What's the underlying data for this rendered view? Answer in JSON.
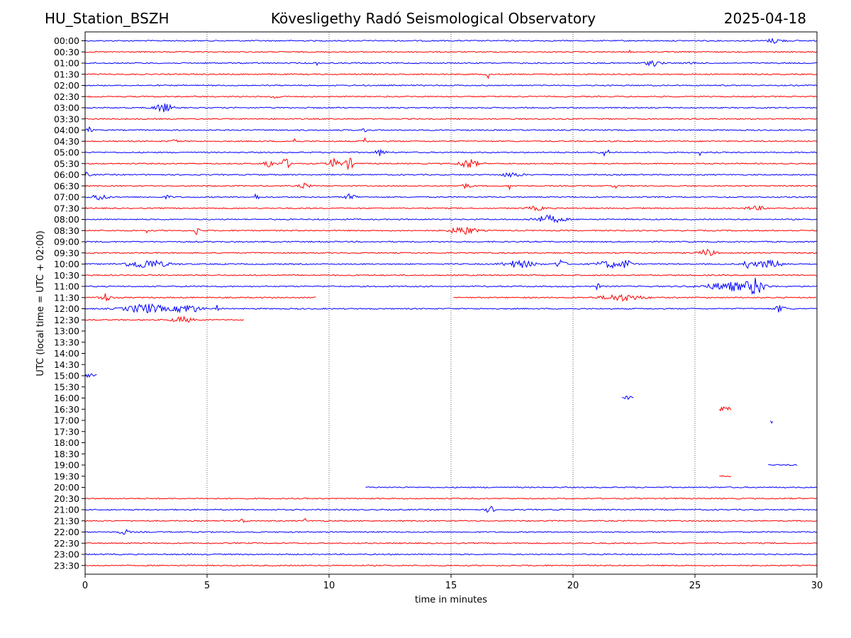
{
  "header": {
    "station": "HU_Station_BSZH",
    "observatory": "Kövesligethy Radó Seismological Observatory",
    "date": "2025-04-18"
  },
  "chart_data": {
    "type": "line",
    "title": "Kövesligethy Radó Seismological Observatory",
    "xlabel": "time in minutes",
    "ylabel": "UTC (local time = UTC + 02:00)",
    "xlim": [
      0,
      30
    ],
    "xticks": [
      0,
      5,
      10,
      15,
      20,
      25,
      30
    ],
    "x_grid": "vertical dotted lines at 5, 10, 15, 20, 25",
    "trace_colors": [
      "#0000ff",
      "#ff0000"
    ],
    "rows": [
      {
        "label": "00:00",
        "color": "#0000ff",
        "segments": [
          [
            0,
            30
          ]
        ],
        "bursts": [
          [
            28.3,
            0.3,
            0.7
          ]
        ]
      },
      {
        "label": "00:30",
        "color": "#ff0000",
        "segments": [
          [
            0,
            30
          ]
        ],
        "bursts": [
          [
            22.3,
            0.05,
            0.5
          ]
        ]
      },
      {
        "label": "01:00",
        "color": "#0000ff",
        "segments": [
          [
            0,
            30
          ]
        ],
        "bursts": [
          [
            9.5,
            0.05,
            0.6
          ],
          [
            23.3,
            0.3,
            0.8
          ],
          [
            24.9,
            0.1,
            0.8
          ]
        ]
      },
      {
        "label": "01:30",
        "color": "#ff0000",
        "segments": [
          [
            0,
            30
          ]
        ],
        "bursts": [
          [
            16.5,
            0.05,
            1.3
          ]
        ]
      },
      {
        "label": "02:00",
        "color": "#0000ff",
        "segments": [
          [
            0,
            30
          ]
        ],
        "bursts": []
      },
      {
        "label": "02:30",
        "color": "#ff0000",
        "segments": [
          [
            0,
            30
          ]
        ],
        "bursts": [
          [
            7.8,
            0.15,
            0.8
          ]
        ]
      },
      {
        "label": "03:00",
        "color": "#0000ff",
        "segments": [
          [
            0,
            30
          ]
        ],
        "bursts": [
          [
            3.2,
            0.35,
            1.2
          ]
        ]
      },
      {
        "label": "03:30",
        "color": "#ff0000",
        "segments": [
          [
            0,
            30
          ]
        ],
        "bursts": []
      },
      {
        "label": "04:00",
        "color": "#0000ff",
        "segments": [
          [
            0,
            30
          ]
        ],
        "bursts": [
          [
            0.2,
            0.1,
            0.8
          ],
          [
            11.5,
            0.1,
            1.0
          ]
        ]
      },
      {
        "label": "04:30",
        "color": "#ff0000",
        "segments": [
          [
            0,
            30
          ]
        ],
        "bursts": [
          [
            3.7,
            0.1,
            0.8
          ],
          [
            8.6,
            0.05,
            2.3
          ],
          [
            11.5,
            0.1,
            0.9
          ]
        ]
      },
      {
        "label": "05:00",
        "color": "#0000ff",
        "segments": [
          [
            0,
            30
          ]
        ],
        "bursts": [
          [
            12.1,
            0.2,
            0.9
          ],
          [
            21.3,
            0.2,
            0.9
          ],
          [
            25.2,
            0.05,
            0.7
          ]
        ]
      },
      {
        "label": "05:30",
        "color": "#ff0000",
        "segments": [
          [
            0,
            30
          ]
        ],
        "bursts": [
          [
            7.5,
            0.15,
            1.6
          ],
          [
            8.2,
            0.2,
            1.4
          ],
          [
            10.2,
            0.2,
            1.5
          ],
          [
            10.8,
            0.2,
            1.6
          ],
          [
            15.7,
            0.35,
            1.3
          ]
        ]
      },
      {
        "label": "06:00",
        "color": "#0000ff",
        "segments": [
          [
            0,
            30
          ]
        ],
        "bursts": [
          [
            0.1,
            0.1,
            0.8
          ],
          [
            17.5,
            0.4,
            0.6
          ]
        ]
      },
      {
        "label": "06:30",
        "color": "#ff0000",
        "segments": [
          [
            0,
            30
          ]
        ],
        "bursts": [
          [
            9.0,
            0.2,
            0.7
          ],
          [
            15.6,
            0.2,
            0.6
          ],
          [
            17.4,
            0.05,
            1.0
          ],
          [
            21.7,
            0.05,
            2.0
          ]
        ]
      },
      {
        "label": "07:00",
        "color": "#0000ff",
        "segments": [
          [
            0,
            30
          ]
        ],
        "bursts": [
          [
            0.6,
            0.3,
            0.9
          ],
          [
            3.4,
            0.1,
            0.7
          ],
          [
            7.0,
            0.1,
            1.0
          ],
          [
            10.9,
            0.2,
            1.0
          ]
        ]
      },
      {
        "label": "07:30",
        "color": "#ff0000",
        "segments": [
          [
            0,
            30
          ]
        ],
        "bursts": [
          [
            18.5,
            0.4,
            0.5
          ],
          [
            27.5,
            0.4,
            0.5
          ]
        ]
      },
      {
        "label": "08:00",
        "color": "#0000ff",
        "segments": [
          [
            0,
            30
          ]
        ],
        "bursts": [
          [
            19.0,
            0.6,
            1.0
          ]
        ]
      },
      {
        "label": "08:30",
        "color": "#ff0000",
        "segments": [
          [
            0,
            30
          ]
        ],
        "bursts": [
          [
            2.5,
            0.05,
            0.8
          ],
          [
            4.6,
            0.1,
            1.4
          ],
          [
            15.5,
            0.5,
            1.1
          ],
          [
            22.0,
            0.1,
            0.8
          ]
        ]
      },
      {
        "label": "09:00",
        "color": "#0000ff",
        "segments": [
          [
            0,
            30
          ]
        ],
        "bursts": []
      },
      {
        "label": "09:30",
        "color": "#ff0000",
        "segments": [
          [
            0,
            30
          ]
        ],
        "bursts": [
          [
            25.5,
            0.3,
            1.0
          ]
        ]
      },
      {
        "label": "10:00",
        "color": "#0000ff",
        "segments": [
          [
            0,
            30
          ]
        ],
        "bursts": [
          [
            2.5,
            0.8,
            1.2
          ],
          [
            17.8,
            0.6,
            1.0
          ],
          [
            19.5,
            0.2,
            1.2
          ],
          [
            21.5,
            0.5,
            1.0
          ],
          [
            22.2,
            0.2,
            1.1
          ],
          [
            27.1,
            0.1,
            1.6
          ],
          [
            28.0,
            0.6,
            1.0
          ]
        ]
      },
      {
        "label": "10:30",
        "color": "#ff0000",
        "segments": [
          [
            0,
            30
          ]
        ],
        "bursts": [
          [
            18.4,
            0.05,
            1.0
          ]
        ]
      },
      {
        "label": "11:00",
        "color": "#0000ff",
        "segments": [
          [
            0,
            30
          ]
        ],
        "bursts": [
          [
            21.0,
            0.1,
            0.8
          ],
          [
            26.5,
            1.0,
            1.2
          ],
          [
            27.5,
            0.3,
            2.2
          ]
        ]
      },
      {
        "label": "11:30",
        "color": "#ff0000",
        "segments": [
          [
            0,
            9.5
          ],
          [
            15.1,
            30
          ]
        ],
        "bursts": [
          [
            0.8,
            0.2,
            1.3
          ],
          [
            22.0,
            0.8,
            0.9
          ]
        ]
      },
      {
        "label": "12:00",
        "color": "#0000ff",
        "segments": [
          [
            0,
            30
          ]
        ],
        "bursts": [
          [
            2.5,
            0.8,
            1.3
          ],
          [
            4.2,
            0.5,
            1.2
          ],
          [
            5.4,
            0.05,
            1.0
          ],
          [
            28.5,
            0.2,
            1.0
          ]
        ]
      },
      {
        "label": "12:30",
        "color": "#ff0000",
        "segments": [
          [
            0,
            6.5
          ]
        ],
        "bursts": [
          [
            4.0,
            0.4,
            0.8
          ]
        ]
      },
      {
        "label": "13:00",
        "color": "#ff0000",
        "segments": [],
        "bursts": []
      },
      {
        "label": "13:30",
        "color": "#ff0000",
        "segments": [],
        "bursts": []
      },
      {
        "label": "14:00",
        "color": "#ff0000",
        "segments": [],
        "bursts": []
      },
      {
        "label": "14:30",
        "color": "#ff0000",
        "segments": [],
        "bursts": []
      },
      {
        "label": "15:00",
        "color": "#0000ff",
        "segments": [
          [
            0,
            0.5
          ]
        ],
        "bursts": [
          [
            0.25,
            0.2,
            0.7
          ]
        ]
      },
      {
        "label": "15:30",
        "color": "#ff0000",
        "segments": [],
        "bursts": []
      },
      {
        "label": "16:00",
        "color": "#0000ff",
        "segments": [
          [
            22.0,
            22.5
          ]
        ],
        "bursts": [
          [
            22.25,
            0.2,
            0.7
          ]
        ]
      },
      {
        "label": "16:30",
        "color": "#ff0000",
        "segments": [
          [
            26.0,
            26.5
          ]
        ],
        "bursts": [
          [
            26.25,
            0.2,
            0.8
          ]
        ]
      },
      {
        "label": "17:00",
        "color": "#0000ff",
        "segments": [
          [
            28.1,
            28.2
          ]
        ],
        "bursts": [
          [
            28.15,
            0.05,
            0.8
          ]
        ]
      },
      {
        "label": "17:30",
        "color": "#ff0000",
        "segments": [],
        "bursts": []
      },
      {
        "label": "18:00",
        "color": "#0000ff",
        "segments": [],
        "bursts": []
      },
      {
        "label": "18:30",
        "color": "#ff0000",
        "segments": [],
        "bursts": []
      },
      {
        "label": "19:00",
        "color": "#0000ff",
        "segments": [
          [
            28.0,
            29.2
          ]
        ],
        "bursts": []
      },
      {
        "label": "19:30",
        "color": "#ff0000",
        "segments": [
          [
            26.0,
            26.5
          ]
        ],
        "bursts": []
      },
      {
        "label": "20:00",
        "color": "#0000ff",
        "segments": [
          [
            11.5,
            30
          ]
        ],
        "bursts": []
      },
      {
        "label": "20:30",
        "color": "#ff0000",
        "segments": [
          [
            0,
            30
          ]
        ],
        "bursts": []
      },
      {
        "label": "21:00",
        "color": "#0000ff",
        "segments": [
          [
            0,
            30
          ]
        ],
        "bursts": [
          [
            16.6,
            0.15,
            1.0
          ]
        ]
      },
      {
        "label": "21:30",
        "color": "#ff0000",
        "segments": [
          [
            0,
            30
          ]
        ],
        "bursts": [
          [
            6.5,
            0.1,
            0.8
          ],
          [
            9.0,
            0.05,
            0.7
          ]
        ]
      },
      {
        "label": "22:00",
        "color": "#0000ff",
        "segments": [
          [
            0,
            30
          ]
        ],
        "bursts": [
          [
            1.6,
            0.2,
            0.7
          ]
        ]
      },
      {
        "label": "22:30",
        "color": "#ff0000",
        "segments": [
          [
            0,
            30
          ]
        ],
        "bursts": []
      },
      {
        "label": "23:00",
        "color": "#0000ff",
        "segments": [
          [
            0,
            30
          ]
        ],
        "bursts": []
      },
      {
        "label": "23:30",
        "color": "#ff0000",
        "segments": [
          [
            0,
            30
          ]
        ],
        "bursts": []
      }
    ]
  }
}
